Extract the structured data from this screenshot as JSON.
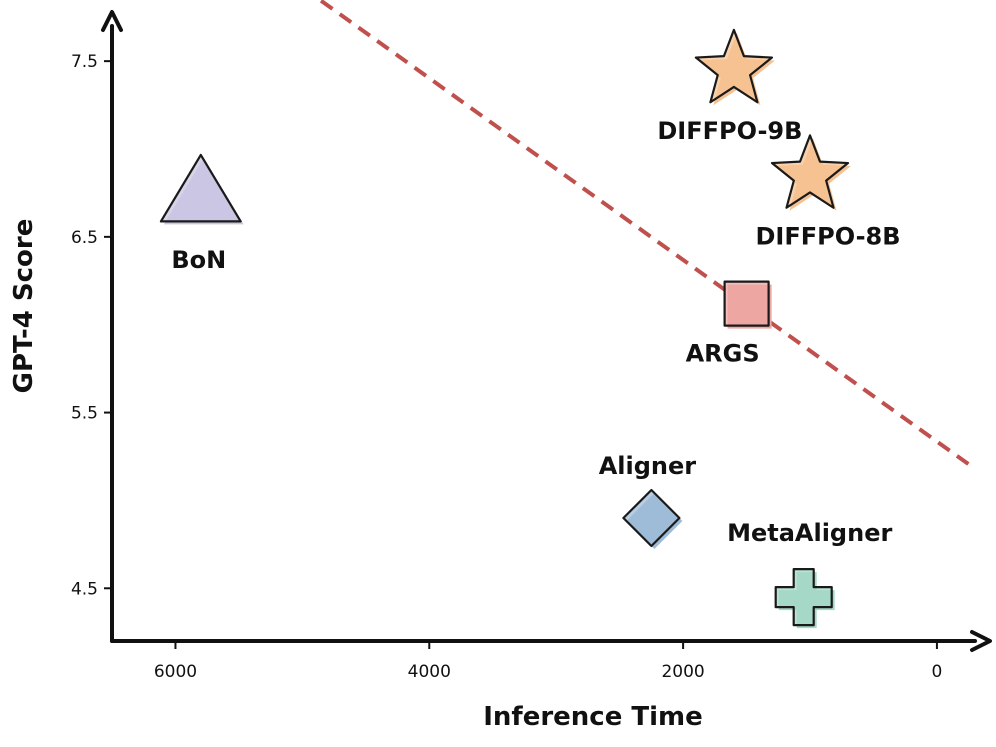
{
  "chart_data": {
    "type": "scatter",
    "xlabel": "Inference Time",
    "ylabel": "GPT-4 Score",
    "x_reversed": true,
    "xlim": [
      6500,
      -300
    ],
    "ylim": [
      4.2,
      7.7
    ],
    "xticks": [
      6000,
      4000,
      2000,
      0
    ],
    "yticks": [
      4.5,
      5.5,
      6.5,
      7.5
    ],
    "x_tick_labels": [
      "6000",
      "4000",
      "2000",
      "0"
    ],
    "y_tick_labels": [
      "4.5",
      "5.5",
      "6.5",
      "7.5"
    ],
    "grid": false,
    "legend": "none",
    "points": [
      {
        "label": "BoN",
        "x": 5800,
        "y": 6.75,
        "marker": "triangle",
        "color": "#c9c6e3"
      },
      {
        "label": "DIFFPO-9B",
        "x": 1600,
        "y": 7.45,
        "marker": "star",
        "color": "#f5c192"
      },
      {
        "label": "DIFFPO-8B",
        "x": 1000,
        "y": 6.85,
        "marker": "star",
        "color": "#f5c192"
      },
      {
        "label": "ARGS",
        "x": 1500,
        "y": 6.12,
        "marker": "square",
        "color": "#eda6a3"
      },
      {
        "label": "Aligner",
        "x": 2250,
        "y": 4.9,
        "marker": "diamond",
        "color": "#9ebcd8"
      },
      {
        "label": "MetaAligner",
        "x": 1050,
        "y": 4.45,
        "marker": "plus",
        "color": "#a6d8c8"
      }
    ],
    "trend_line": {
      "x": [
        5000,
        -300
      ],
      "y": [
        7.92,
        5.18
      ],
      "style": "dashed",
      "color": "#c0504d"
    }
  }
}
